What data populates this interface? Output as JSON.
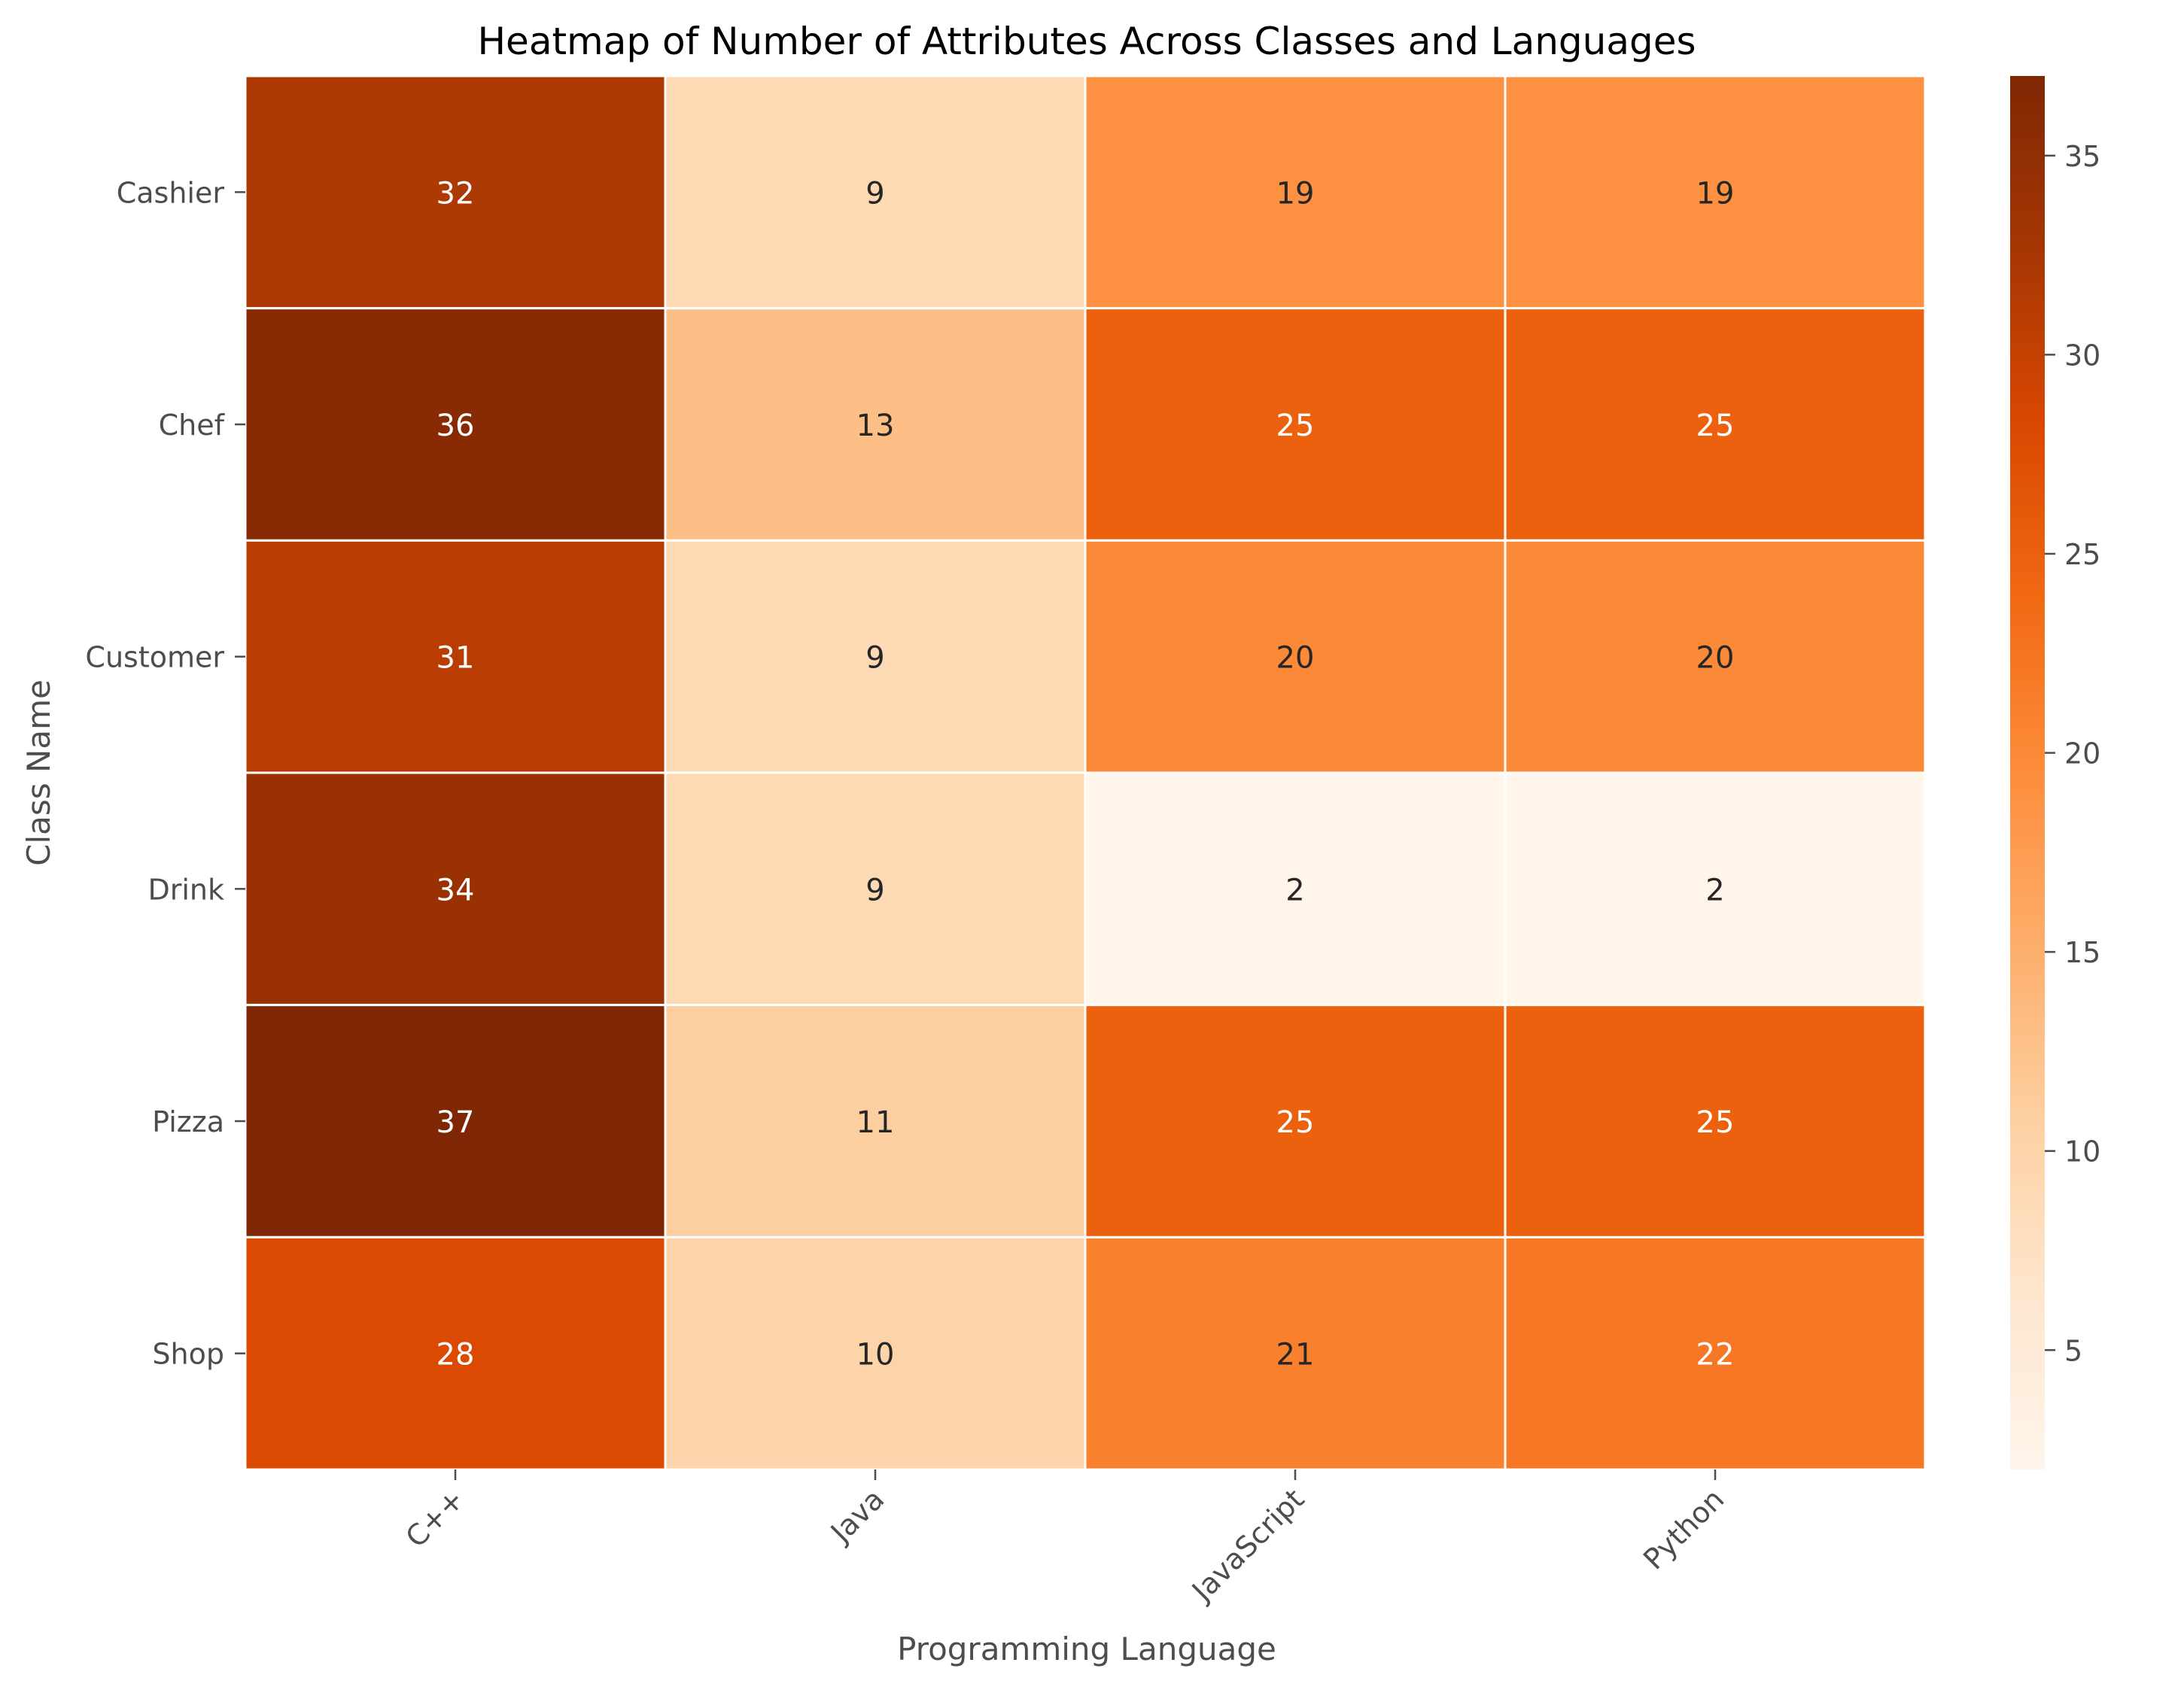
{
  "chart_data": {
    "type": "heatmap",
    "title": "Heatmap of Number of Attributes Across Classes and Languages",
    "xlabel": "Programming Language",
    "ylabel": "Class Name",
    "columns": [
      "C++",
      "Java",
      "JavaScript",
      "Python"
    ],
    "rows": [
      "Cashier",
      "Chef",
      "Customer",
      "Drink",
      "Pizza",
      "Shop"
    ],
    "values": [
      [
        32,
        9,
        19,
        19
      ],
      [
        36,
        13,
        25,
        25
      ],
      [
        31,
        9,
        20,
        20
      ],
      [
        34,
        9,
        2,
        2
      ],
      [
        37,
        11,
        25,
        25
      ],
      [
        28,
        10,
        21,
        22
      ]
    ],
    "value_range": [
      2,
      37
    ],
    "colorbar_ticks": [
      5,
      10,
      15,
      20,
      25,
      30,
      35
    ],
    "colormap": "Oranges",
    "colors": {
      "cell_border": "#ffffff",
      "text_dark": "#262626",
      "text_light": "#ffffff",
      "axis_text": "#4d4d4d"
    }
  }
}
